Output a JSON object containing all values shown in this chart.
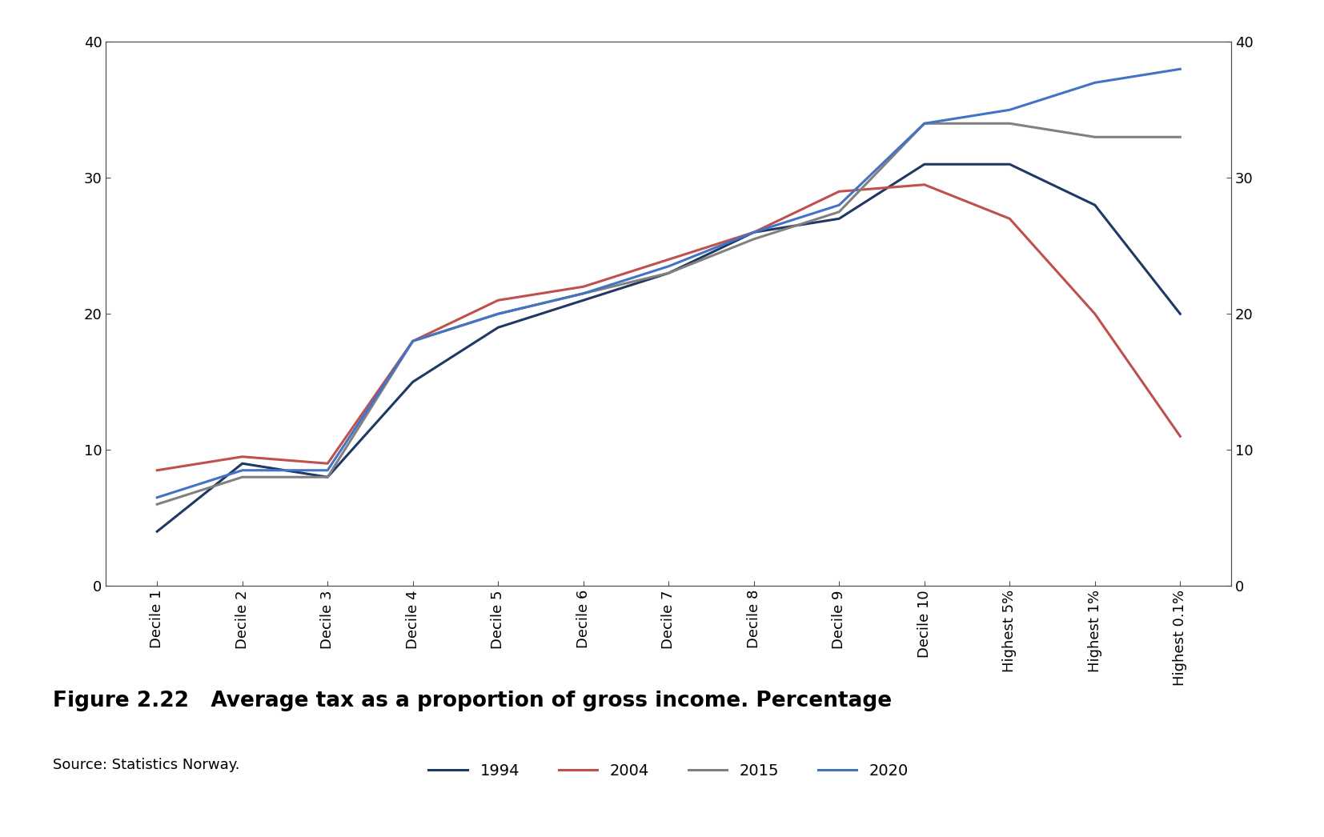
{
  "categories": [
    "Decile 1",
    "Decile 2",
    "Decile 3",
    "Decile 4",
    "Decile 5",
    "Decile 6",
    "Decile 7",
    "Decile 8",
    "Decile 9",
    "Decile 10",
    "Highest 5%",
    "Highest 1%",
    "Highest 0.1%"
  ],
  "series": {
    "1994": [
      4,
      9,
      8,
      15,
      19,
      21,
      23,
      26,
      27,
      31,
      31,
      28,
      20
    ],
    "2004": [
      8.5,
      9.5,
      9,
      18,
      21,
      22,
      24,
      26,
      29,
      29.5,
      27,
      20,
      11
    ],
    "2015": [
      6,
      8,
      8,
      18,
      20,
      21.5,
      23,
      25.5,
      27.5,
      34,
      34,
      33,
      33
    ],
    "2020": [
      6.5,
      8.5,
      8.5,
      18,
      20,
      21.5,
      23.5,
      26,
      28,
      34,
      35,
      37,
      38
    ]
  },
  "colors": {
    "1994": "#1f3864",
    "2004": "#c0504d",
    "2015": "#808080",
    "2020": "#4472c4"
  },
  "line_width": 2.2,
  "ylim": [
    0,
    40
  ],
  "yticks": [
    0,
    10,
    20,
    30,
    40
  ],
  "legend_order": [
    "1994",
    "2004",
    "2015",
    "2020"
  ],
  "title": "Figure 2.22   Average tax as a proportion of gross income. Percentage",
  "source": "Source: Statistics Norway.",
  "bg_color": "#ffffff",
  "plot_bg_color": "#ffffff",
  "border_color": "#4d4d4d",
  "tick_color": "#4d4d4d"
}
